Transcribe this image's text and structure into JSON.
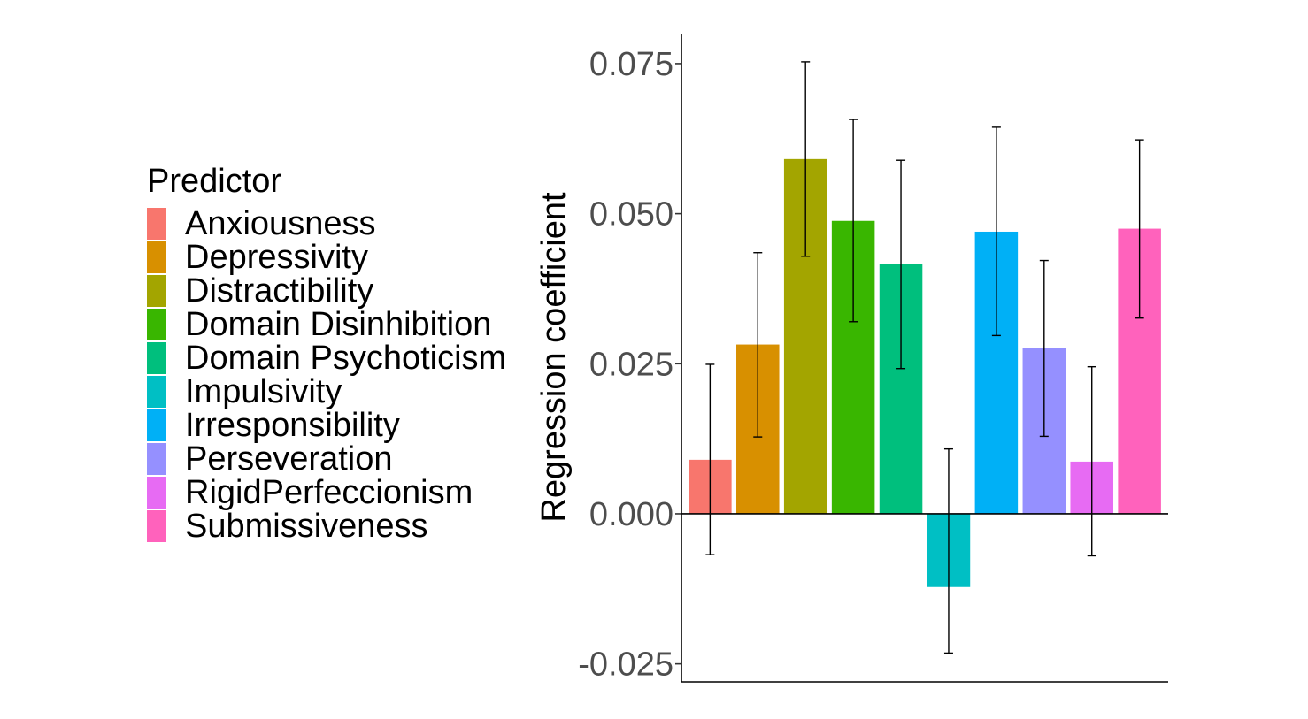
{
  "chart_data": {
    "type": "bar",
    "title": "",
    "xlabel": "",
    "ylabel": "Regression coefficient",
    "ylim": [
      -0.028,
      0.08
    ],
    "yticks": [
      -0.025,
      0.0,
      0.025,
      0.05,
      0.075
    ],
    "ytick_labels": [
      "-0.025",
      "0.000",
      "0.025",
      "0.050",
      "0.075"
    ],
    "legend": {
      "title": "Predictor",
      "position": "left"
    },
    "grid": false,
    "series": [
      {
        "name": "Anxiousness",
        "value": 0.009,
        "err_low": -0.0068,
        "err_high": 0.0249,
        "color": "#F8766D"
      },
      {
        "name": "Depressivity",
        "value": 0.0282,
        "err_low": 0.0128,
        "err_high": 0.0435,
        "color": "#D89000"
      },
      {
        "name": "Distractibility",
        "value": 0.0591,
        "err_low": 0.0429,
        "err_high": 0.0753,
        "color": "#A3A500"
      },
      {
        "name": "Domain Disinhibition",
        "value": 0.0488,
        "err_low": 0.032,
        "err_high": 0.0657,
        "color": "#39B600"
      },
      {
        "name": "Domain Psychoticism",
        "value": 0.0416,
        "err_low": 0.0242,
        "err_high": 0.0589,
        "color": "#00BF7D"
      },
      {
        "name": "Impulsivity",
        "value": -0.0122,
        "err_low": -0.0232,
        "err_high": 0.0108,
        "color": "#00BFC4"
      },
      {
        "name": "Irresponsibility",
        "value": 0.047,
        "err_low": 0.0297,
        "err_high": 0.0644,
        "color": "#00B0F6"
      },
      {
        "name": "Perseveration",
        "value": 0.0276,
        "err_low": 0.0129,
        "err_high": 0.0422,
        "color": "#9590FF"
      },
      {
        "name": "RigidPerfeccionism",
        "value": 0.0087,
        "err_low": -0.007,
        "err_high": 0.0245,
        "color": "#E76BF3"
      },
      {
        "name": "Submissiveness",
        "value": 0.0475,
        "err_low": 0.0326,
        "err_high": 0.0623,
        "color": "#FF62BC"
      }
    ]
  }
}
